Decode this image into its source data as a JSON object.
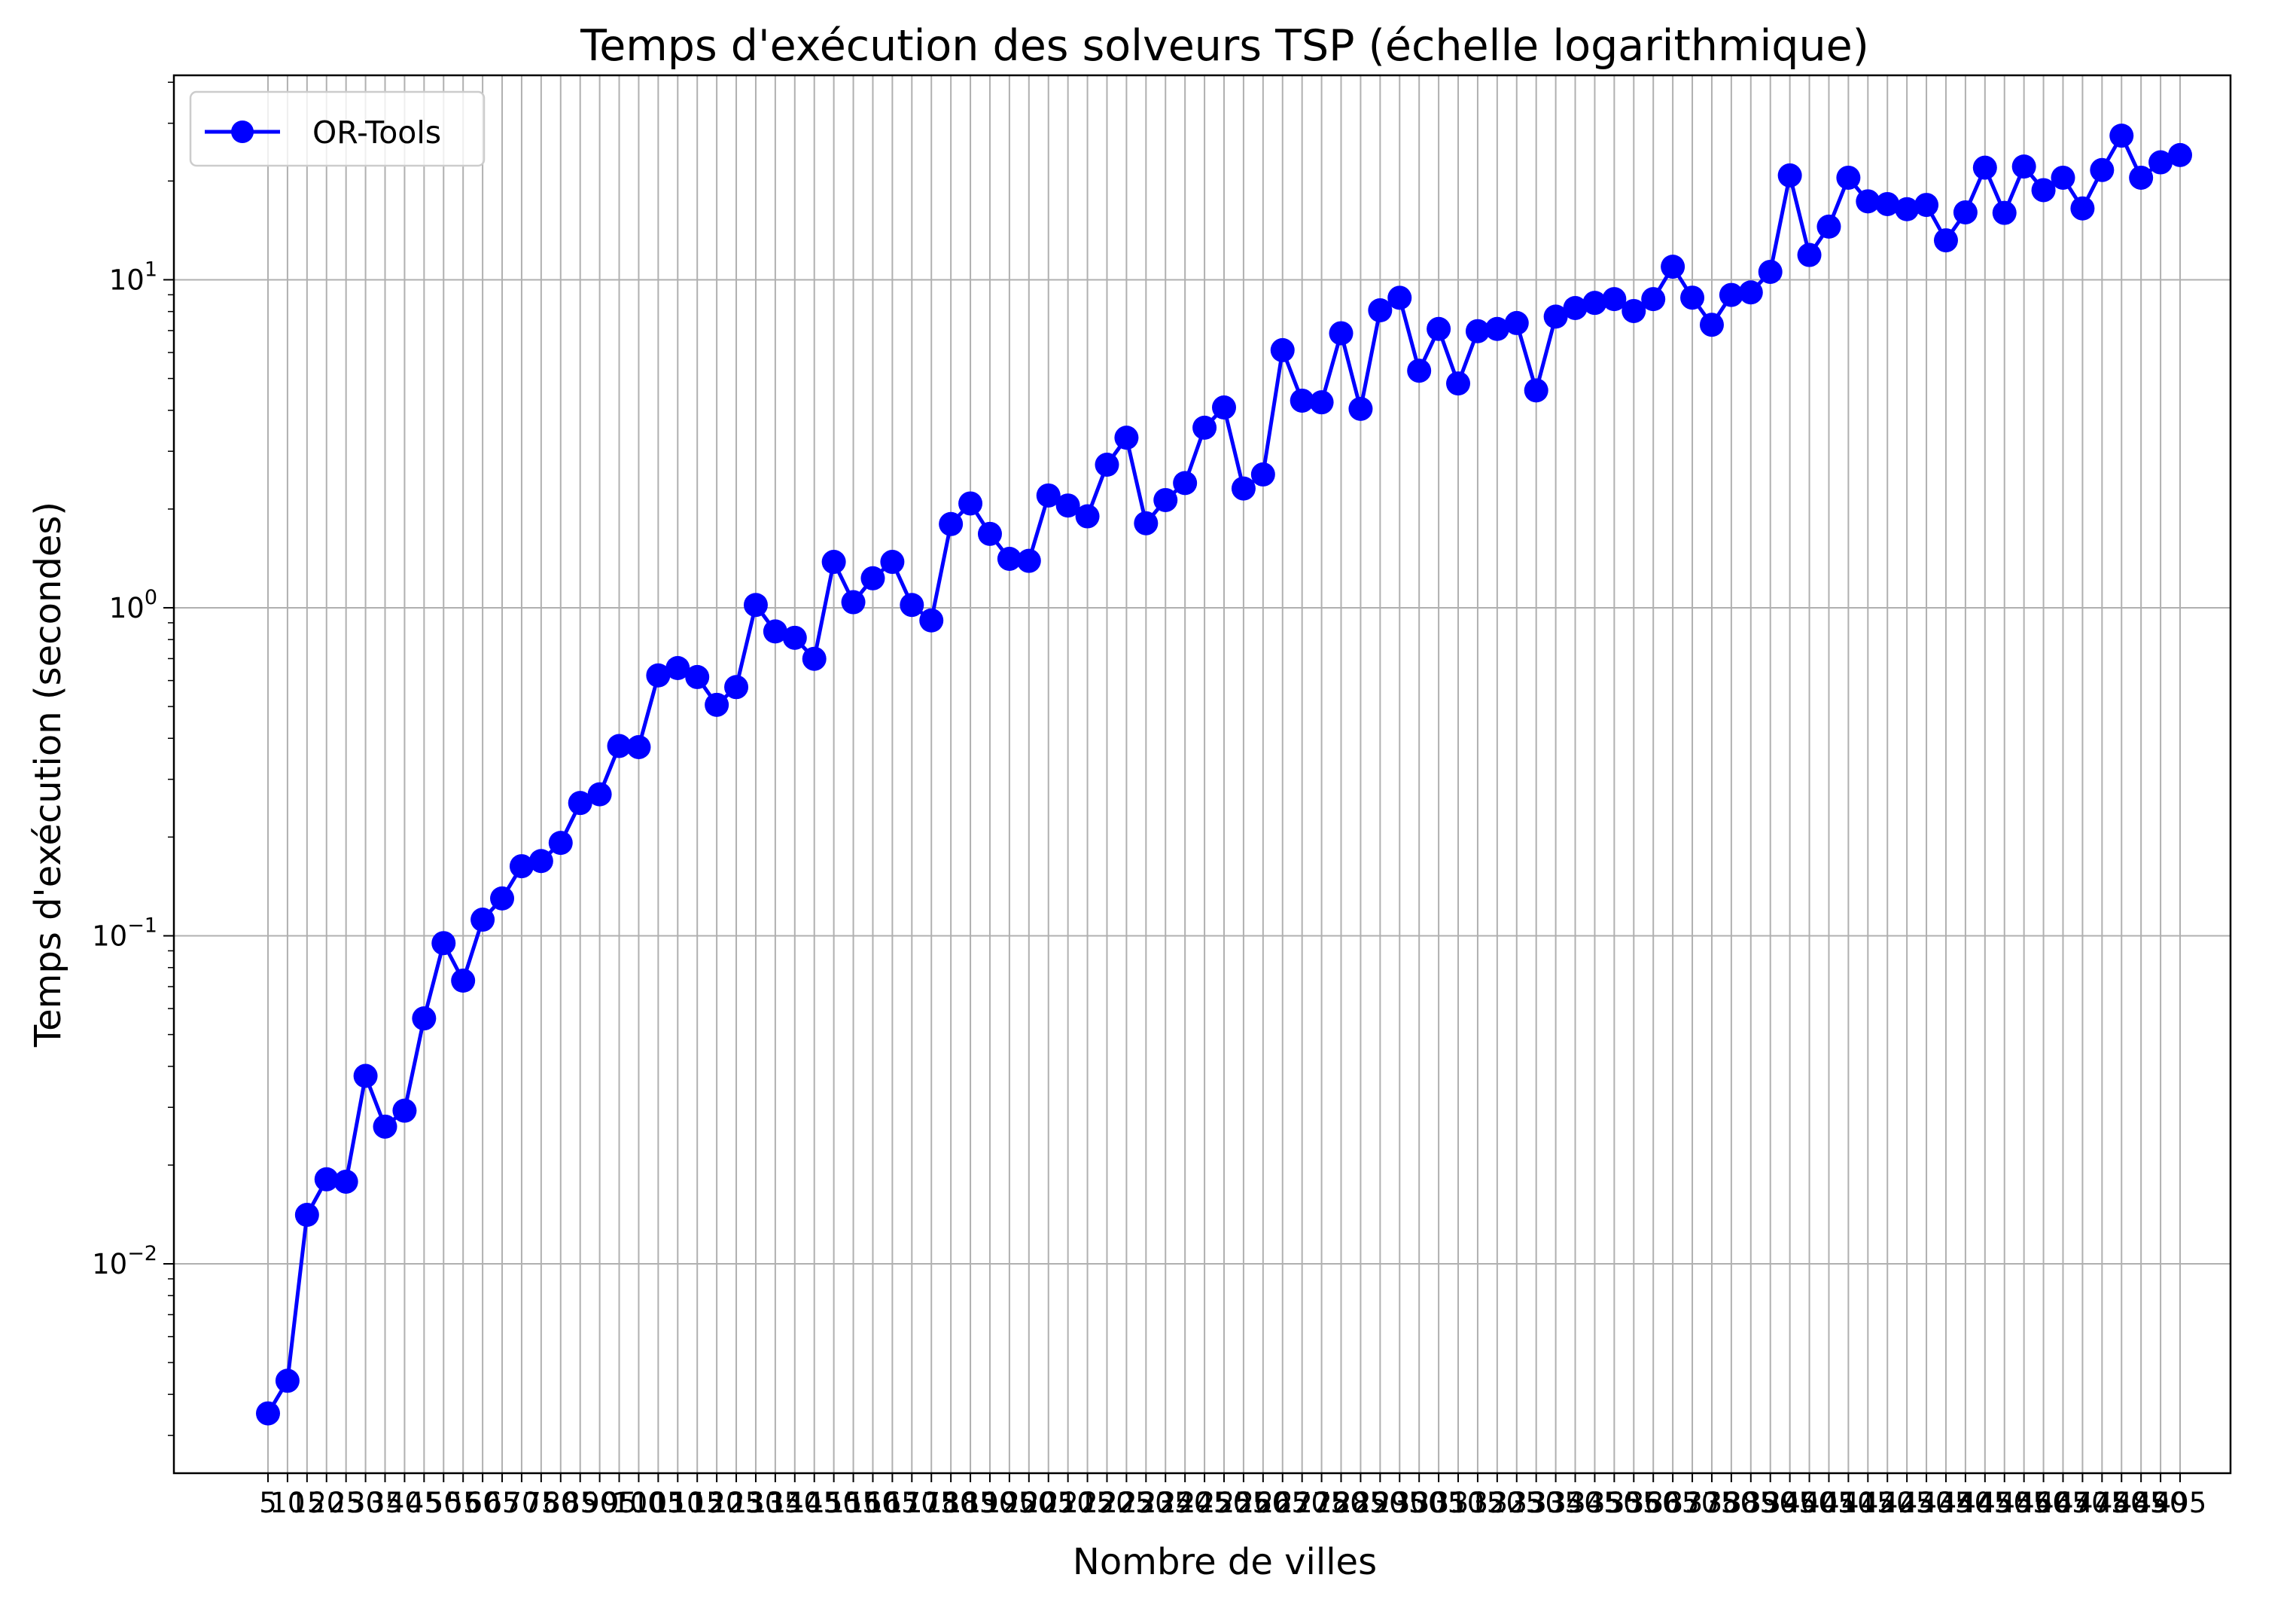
{
  "chart_data": {
    "type": "line",
    "title": "Temps d'exécution des solveurs TSP (échelle logarithmique)",
    "xlabel": "Nombre de villes",
    "ylabel": "Temps d'exécution (secondes)",
    "yscale": "log",
    "ylim": [
      0.0023,
      42
    ],
    "grid": true,
    "legend": {
      "position": "top-left",
      "entries": [
        "OR-Tools"
      ]
    },
    "series": [
      {
        "name": "OR-Tools",
        "color": "#0000ff",
        "marker": "circle",
        "x": [
          5,
          10,
          15,
          20,
          25,
          30,
          35,
          40,
          45,
          50,
          55,
          60,
          65,
          70,
          75,
          80,
          85,
          90,
          95,
          100,
          105,
          110,
          115,
          120,
          125,
          130,
          135,
          140,
          145,
          150,
          155,
          160,
          165,
          170,
          175,
          180,
          185,
          190,
          195,
          200,
          205,
          210,
          215,
          220,
          225,
          230,
          235,
          240,
          245,
          250,
          255,
          260,
          265,
          270,
          275,
          280,
          285,
          290,
          295,
          300,
          305,
          310,
          315,
          320,
          325,
          330,
          335,
          340,
          345,
          350,
          355,
          360,
          365,
          370,
          375,
          380,
          385,
          390,
          395,
          400,
          405,
          410,
          415,
          420,
          425,
          430,
          435,
          440,
          445,
          450,
          455,
          460,
          465,
          470,
          475,
          480,
          485,
          490,
          495
        ],
        "values": [
          0.0035,
          0.0044,
          0.0141,
          0.0181,
          0.0178,
          0.0374,
          0.0262,
          0.0293,
          0.056,
          0.095,
          0.073,
          0.112,
          0.13,
          0.163,
          0.169,
          0.192,
          0.254,
          0.27,
          0.379,
          0.376,
          0.622,
          0.655,
          0.615,
          0.506,
          0.573,
          1.02,
          0.847,
          0.81,
          0.699,
          1.38,
          1.04,
          1.23,
          1.38,
          1.02,
          0.915,
          1.8,
          2.08,
          1.68,
          1.41,
          1.39,
          2.2,
          2.05,
          1.9,
          2.73,
          3.3,
          1.81,
          2.13,
          2.4,
          3.54,
          4.08,
          2.31,
          2.55,
          6.1,
          4.28,
          4.23,
          6.87,
          4.04,
          8.07,
          8.81,
          5.28,
          7.08,
          4.83,
          6.97,
          7.08,
          7.38,
          4.6,
          7.72,
          8.2,
          8.5,
          8.73,
          8.03,
          8.73,
          10.96,
          8.82,
          7.29,
          8.99,
          9.15,
          10.57,
          20.8,
          11.9,
          14.52,
          20.47,
          17.34,
          17.01,
          16.41,
          16.91,
          13.19,
          16.05,
          21.96,
          15.99,
          22.14,
          18.76,
          20.47,
          16.5,
          21.6,
          27.5,
          20.47,
          22.8,
          24.0
        ]
      }
    ],
    "y_ticks": [
      {
        "value": 0.01,
        "base": "10",
        "exp": "−2"
      },
      {
        "value": 0.1,
        "base": "10",
        "exp": "−1"
      },
      {
        "value": 1,
        "base": "10",
        "exp": "0"
      },
      {
        "value": 10,
        "base": "10",
        "exp": "1"
      }
    ]
  }
}
